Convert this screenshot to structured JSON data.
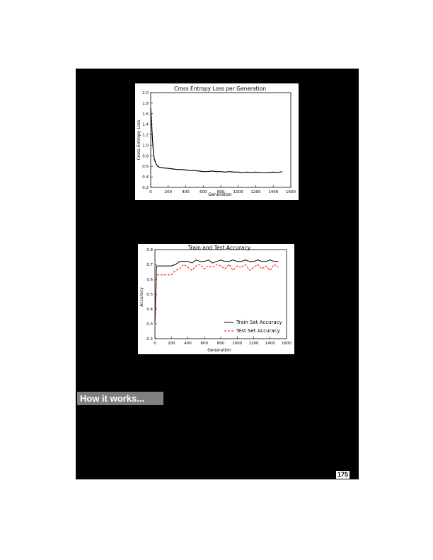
{
  "section_heading": "How it works...",
  "page_number": "175",
  "colors": {
    "background": "#000000",
    "heading_band": "#808080",
    "train_series": "#000000",
    "test_series": "#ff0000"
  },
  "chart_data": [
    {
      "type": "line",
      "title": "Cross Entropy Loss per Generation",
      "xlabel": "Generation",
      "ylabel": "Cross Entropy Loss",
      "xlim": [
        0,
        1600
      ],
      "ylim": [
        0.2,
        2.0
      ],
      "xticks": [
        "0",
        "200",
        "400",
        "600",
        "800",
        "1000",
        "1200",
        "1400",
        "1600"
      ],
      "yticks": [
        "0.2",
        "0.4",
        "0.6",
        "0.8",
        "1.0",
        "1.2",
        "1.4",
        "1.6",
        "1.8",
        "2.0"
      ],
      "grid": false,
      "series": [
        {
          "x": [
            0,
            10,
            20,
            30,
            40,
            60,
            80,
            100,
            150,
            200,
            250,
            300,
            350,
            400,
            450,
            500,
            550,
            600,
            650,
            700,
            750,
            800,
            850,
            900,
            950,
            1000,
            1050,
            1100,
            1150,
            1200,
            1250,
            1300,
            1350,
            1400,
            1450,
            1500
          ],
          "values": [
            1.7,
            1.45,
            1.1,
            0.9,
            0.75,
            0.65,
            0.6,
            0.58,
            0.57,
            0.56,
            0.55,
            0.54,
            0.54,
            0.53,
            0.52,
            0.52,
            0.51,
            0.5,
            0.5,
            0.51,
            0.5,
            0.5,
            0.49,
            0.5,
            0.49,
            0.49,
            0.48,
            0.49,
            0.48,
            0.49,
            0.48,
            0.48,
            0.48,
            0.49,
            0.48,
            0.5
          ]
        }
      ]
    },
    {
      "type": "line",
      "title": "Train and Test Accuracy",
      "xlabel": "Generation",
      "ylabel": "Accuracy",
      "xlim": [
        0,
        1600
      ],
      "ylim": [
        0.2,
        0.8
      ],
      "xticks": [
        "0",
        "200",
        "400",
        "600",
        "800",
        "1000",
        "1200",
        "1400",
        "1600"
      ],
      "yticks": [
        "0.2",
        "0.3",
        "0.4",
        "0.5",
        "0.6",
        "0.7",
        "0.8"
      ],
      "grid": false,
      "legend": "lower-right",
      "series": [
        {
          "name": "Train Set Accuracy",
          "x": [
            0,
            20,
            40,
            60,
            80,
            100,
            150,
            200,
            250,
            300,
            350,
            400,
            450,
            500,
            550,
            600,
            650,
            700,
            750,
            800,
            850,
            900,
            950,
            1000,
            1050,
            1100,
            1150,
            1200,
            1250,
            1300,
            1350,
            1400,
            1450,
            1500
          ],
          "values": [
            0.31,
            0.69,
            0.69,
            0.69,
            0.69,
            0.69,
            0.69,
            0.69,
            0.7,
            0.72,
            0.72,
            0.72,
            0.71,
            0.73,
            0.72,
            0.72,
            0.73,
            0.71,
            0.72,
            0.73,
            0.72,
            0.72,
            0.73,
            0.72,
            0.72,
            0.73,
            0.72,
            0.72,
            0.73,
            0.72,
            0.72,
            0.73,
            0.72,
            0.72
          ]
        },
        {
          "name": "Test Set Accuracy",
          "x": [
            0,
            20,
            40,
            60,
            80,
            100,
            150,
            200,
            250,
            300,
            350,
            400,
            450,
            500,
            550,
            600,
            650,
            700,
            750,
            800,
            850,
            900,
            950,
            1000,
            1050,
            1100,
            1150,
            1200,
            1250,
            1300,
            1350,
            1400,
            1450,
            1500
          ],
          "values": [
            0.3,
            0.63,
            0.63,
            0.63,
            0.63,
            0.63,
            0.63,
            0.63,
            0.66,
            0.67,
            0.7,
            0.68,
            0.66,
            0.69,
            0.7,
            0.67,
            0.69,
            0.68,
            0.7,
            0.69,
            0.67,
            0.7,
            0.66,
            0.69,
            0.68,
            0.7,
            0.66,
            0.68,
            0.7,
            0.67,
            0.69,
            0.66,
            0.7,
            0.68
          ]
        }
      ]
    }
  ]
}
